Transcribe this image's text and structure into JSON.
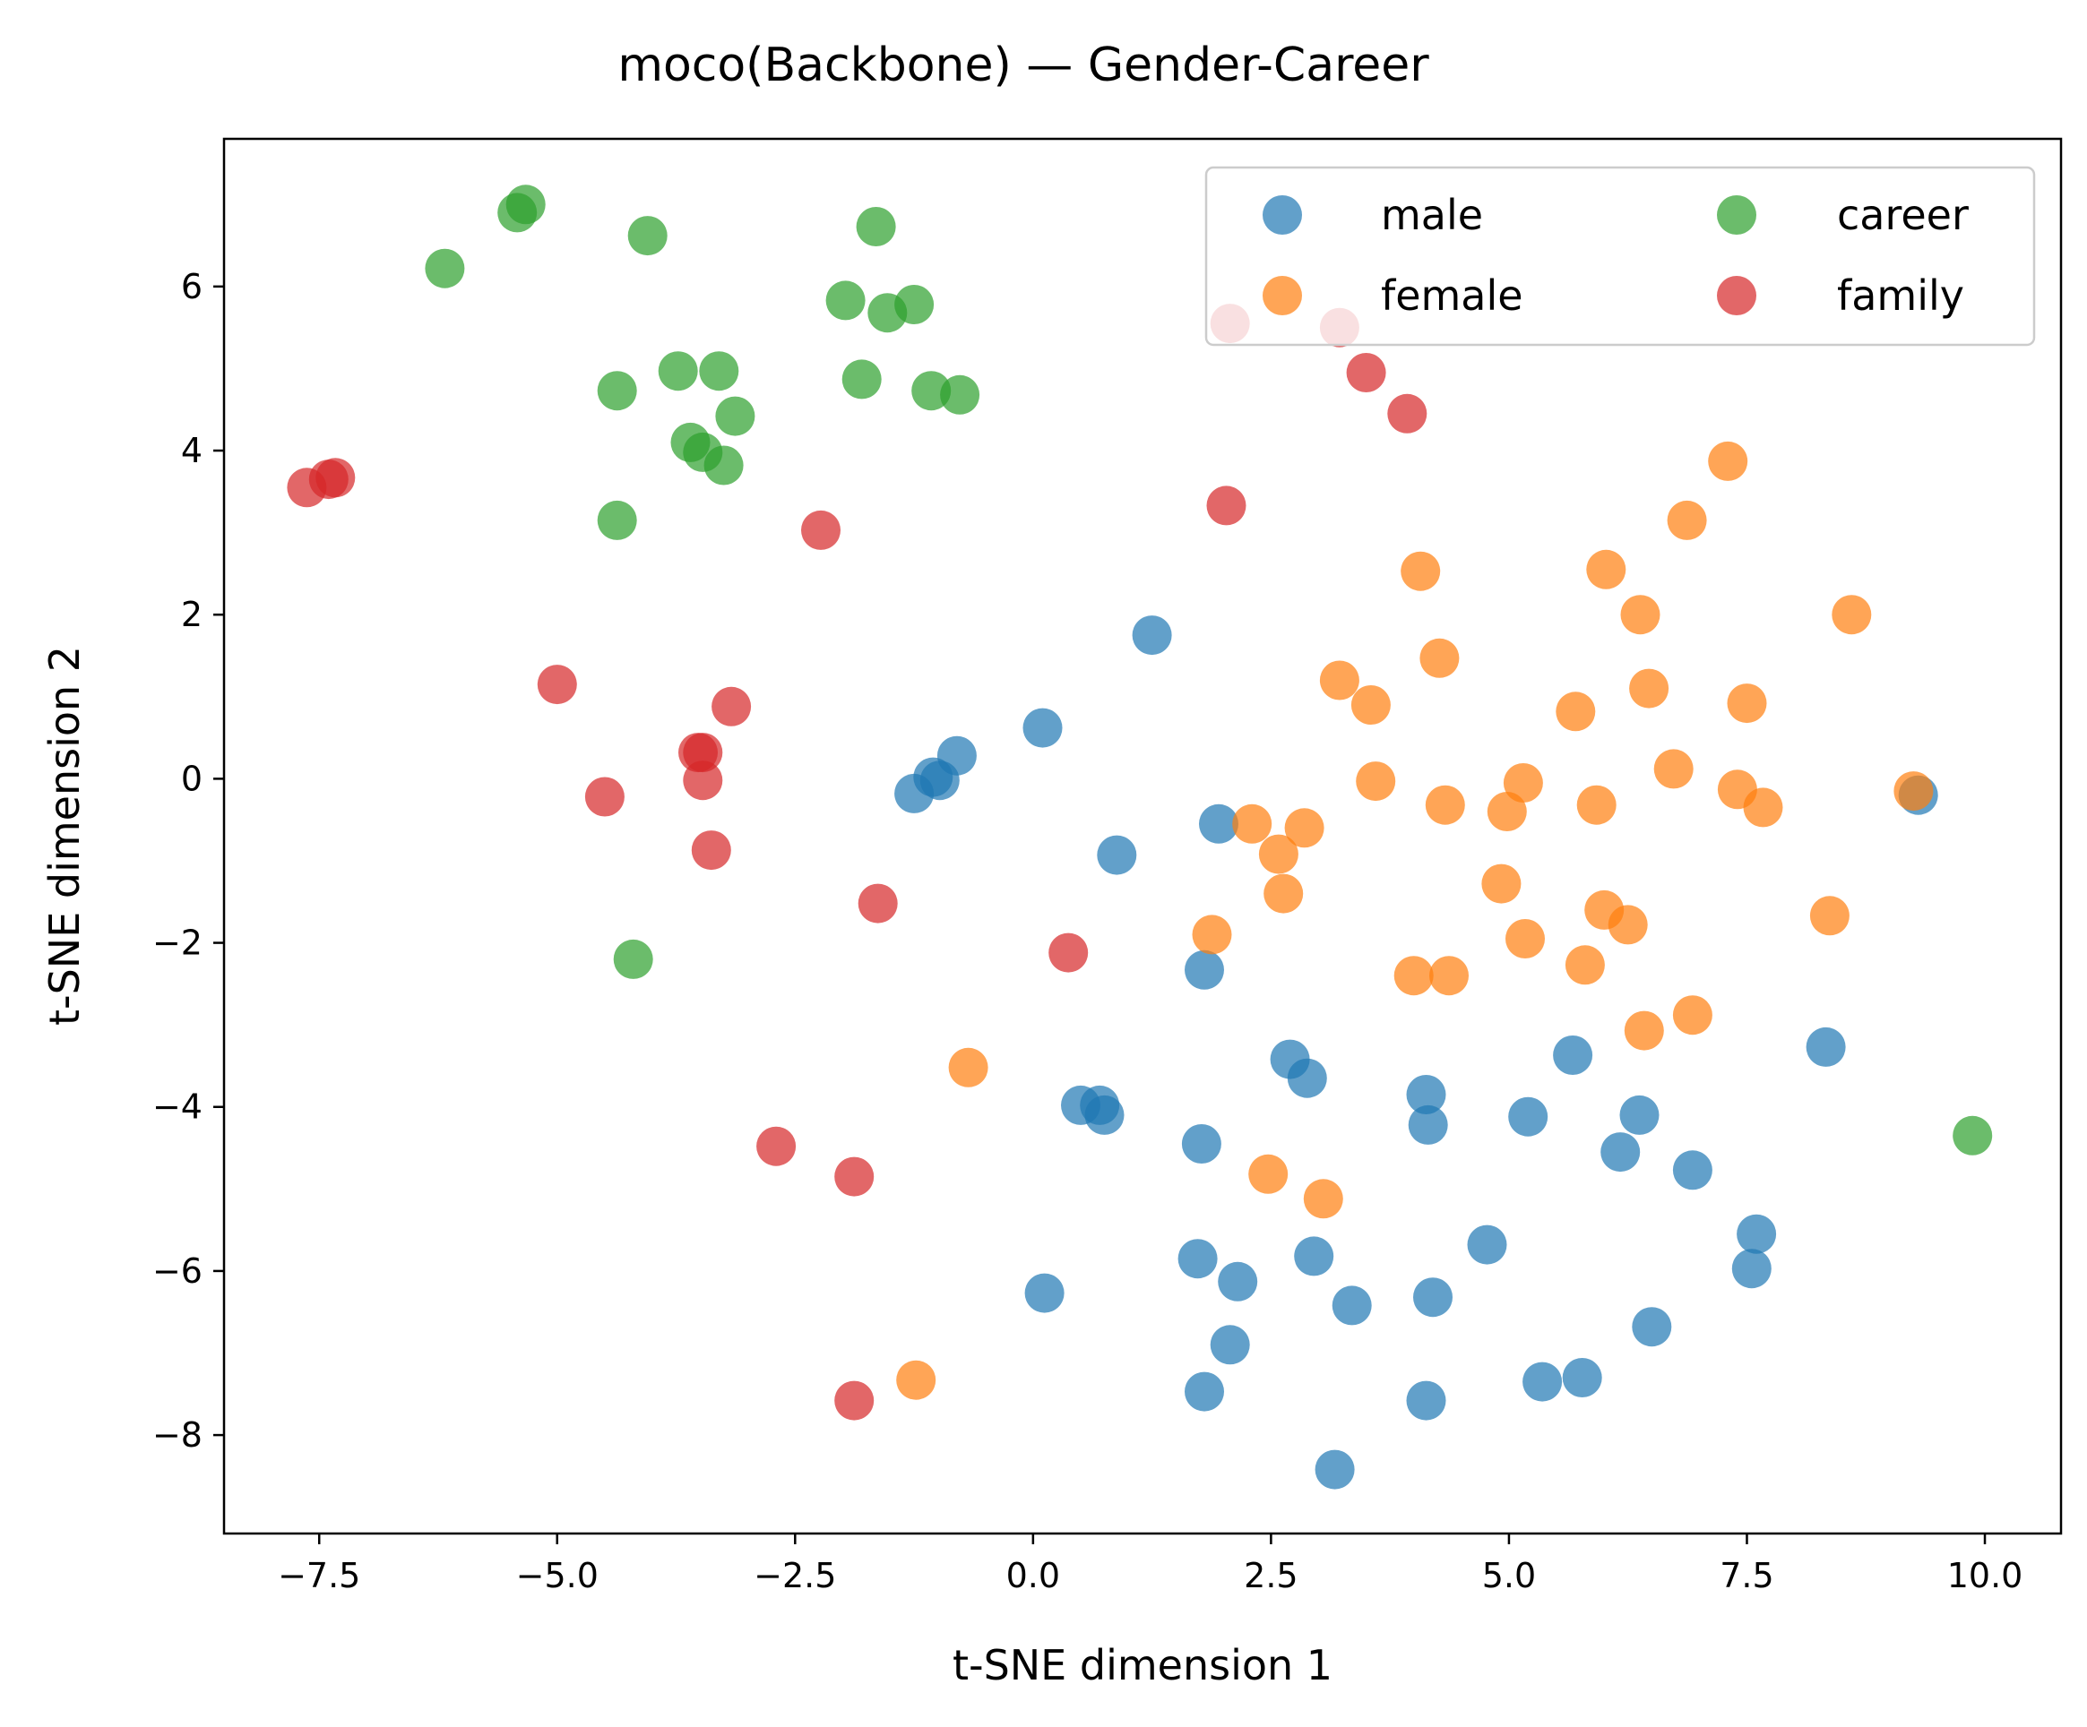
{
  "chart_data": {
    "type": "scatter",
    "title": "moco(Backbone) — Gender-Career",
    "xlabel": "t-SNE dimension 1",
    "ylabel": "t-SNE dimension 2",
    "xlim": [
      -8.5,
      10.8
    ],
    "ylim": [
      -9.2,
      7.8
    ],
    "xticks": [
      -7.5,
      -5.0,
      -2.5,
      0.0,
      2.5,
      5.0,
      7.5,
      10.0
    ],
    "xtick_labels": [
      "−7.5",
      "−5.0",
      "−2.5",
      "0.0",
      "2.5",
      "5.0",
      "7.5",
      "10.0"
    ],
    "yticks": [
      -8,
      -6,
      -4,
      -2,
      0,
      2,
      4,
      6
    ],
    "ytick_labels": [
      "−8",
      "−6",
      "−4",
      "−2",
      "0",
      "2",
      "4",
      "6"
    ],
    "grid": false,
    "legend_position": "top-right",
    "legend_columns": 2,
    "series": [
      {
        "name": "male",
        "color": "#1f77b4",
        "points": [
          [
            1.25,
            1.75
          ],
          [
            0.1,
            0.62
          ],
          [
            -0.8,
            0.28
          ],
          [
            -1.05,
            0.02
          ],
          [
            -0.98,
            -0.02
          ],
          [
            -1.25,
            -0.18
          ],
          [
            0.88,
            -0.93
          ],
          [
            1.95,
            -0.55
          ],
          [
            1.8,
            -2.33
          ],
          [
            2.7,
            -3.42
          ],
          [
            2.88,
            -3.65
          ],
          [
            0.5,
            -3.98
          ],
          [
            0.7,
            -3.98
          ],
          [
            0.75,
            -4.1
          ],
          [
            1.77,
            -4.45
          ],
          [
            4.13,
            -3.85
          ],
          [
            4.15,
            -4.22
          ],
          [
            5.2,
            -4.12
          ],
          [
            5.67,
            -3.37
          ],
          [
            6.37,
            -4.1
          ],
          [
            6.17,
            -4.55
          ],
          [
            6.93,
            -4.77
          ],
          [
            8.33,
            -3.27
          ],
          [
            7.6,
            -5.55
          ],
          [
            7.55,
            -5.97
          ],
          [
            1.73,
            -5.85
          ],
          [
            2.15,
            -6.13
          ],
          [
            2.95,
            -5.82
          ],
          [
            3.35,
            -6.42
          ],
          [
            4.2,
            -6.32
          ],
          [
            4.77,
            -5.68
          ],
          [
            0.12,
            -6.27
          ],
          [
            2.07,
            -6.9
          ],
          [
            1.8,
            -7.47
          ],
          [
            4.13,
            -7.58
          ],
          [
            5.35,
            -7.35
          ],
          [
            5.77,
            -7.3
          ],
          [
            6.5,
            -6.68
          ],
          [
            3.17,
            -8.42
          ],
          [
            9.3,
            -0.2
          ]
        ]
      },
      {
        "name": "female",
        "color": "#ff7f0e",
        "points": [
          [
            7.3,
            3.87
          ],
          [
            6.87,
            3.15
          ],
          [
            4.07,
            2.53
          ],
          [
            6.02,
            2.55
          ],
          [
            6.38,
            2.0
          ],
          [
            8.6,
            2.0
          ],
          [
            4.27,
            1.47
          ],
          [
            3.22,
            1.2
          ],
          [
            3.55,
            0.9
          ],
          [
            5.7,
            0.82
          ],
          [
            6.47,
            1.1
          ],
          [
            7.5,
            0.92
          ],
          [
            3.6,
            -0.03
          ],
          [
            5.15,
            -0.05
          ],
          [
            6.73,
            0.12
          ],
          [
            7.4,
            -0.13
          ],
          [
            9.25,
            -0.15
          ],
          [
            4.33,
            -0.32
          ],
          [
            4.98,
            -0.4
          ],
          [
            5.92,
            -0.32
          ],
          [
            7.67,
            -0.35
          ],
          [
            2.3,
            -0.55
          ],
          [
            2.85,
            -0.6
          ],
          [
            2.58,
            -0.92
          ],
          [
            2.63,
            -1.4
          ],
          [
            4.92,
            -1.28
          ],
          [
            6.0,
            -1.6
          ],
          [
            6.25,
            -1.78
          ],
          [
            1.88,
            -1.9
          ],
          [
            5.17,
            -1.95
          ],
          [
            8.37,
            -1.67
          ],
          [
            4.0,
            -2.4
          ],
          [
            4.37,
            -2.4
          ],
          [
            5.8,
            -2.27
          ],
          [
            6.42,
            -3.07
          ],
          [
            6.93,
            -2.88
          ],
          [
            -0.68,
            -3.52
          ],
          [
            2.47,
            -4.82
          ],
          [
            3.05,
            -5.12
          ],
          [
            -1.23,
            -7.33
          ]
        ]
      },
      {
        "name": "career",
        "color": "#2ca02c",
        "points": [
          [
            -5.42,
            6.9
          ],
          [
            -5.33,
            7.0
          ],
          [
            -4.05,
            6.62
          ],
          [
            -1.65,
            6.73
          ],
          [
            -6.18,
            6.22
          ],
          [
            -1.97,
            5.83
          ],
          [
            -1.53,
            5.68
          ],
          [
            -1.25,
            5.78
          ],
          [
            -3.73,
            4.97
          ],
          [
            -3.3,
            4.97
          ],
          [
            -4.37,
            4.73
          ],
          [
            -1.8,
            4.87
          ],
          [
            -1.07,
            4.73
          ],
          [
            -0.77,
            4.68
          ],
          [
            -3.13,
            4.42
          ],
          [
            -3.6,
            4.1
          ],
          [
            -3.47,
            3.98
          ],
          [
            -3.25,
            3.82
          ],
          [
            -4.37,
            3.15
          ],
          [
            -4.2,
            -2.2
          ],
          [
            9.87,
            -4.35
          ]
        ]
      },
      {
        "name": "family",
        "color": "#d62728",
        "points": [
          [
            -7.63,
            3.55
          ],
          [
            -7.4,
            3.65
          ],
          [
            -7.33,
            3.67
          ],
          [
            2.07,
            5.55
          ],
          [
            3.22,
            5.5
          ],
          [
            3.5,
            4.95
          ],
          [
            3.93,
            4.45
          ],
          [
            2.03,
            3.33
          ],
          [
            -2.23,
            3.03
          ],
          [
            -5.0,
            1.15
          ],
          [
            -3.17,
            0.88
          ],
          [
            -3.52,
            0.32
          ],
          [
            -3.47,
            0.32
          ],
          [
            -3.47,
            -0.02
          ],
          [
            -4.5,
            -0.22
          ],
          [
            -3.38,
            -0.87
          ],
          [
            -1.63,
            -1.52
          ],
          [
            0.37,
            -2.12
          ],
          [
            -2.7,
            -4.48
          ],
          [
            -1.88,
            -4.85
          ],
          [
            -1.88,
            -7.58
          ]
        ]
      }
    ]
  }
}
